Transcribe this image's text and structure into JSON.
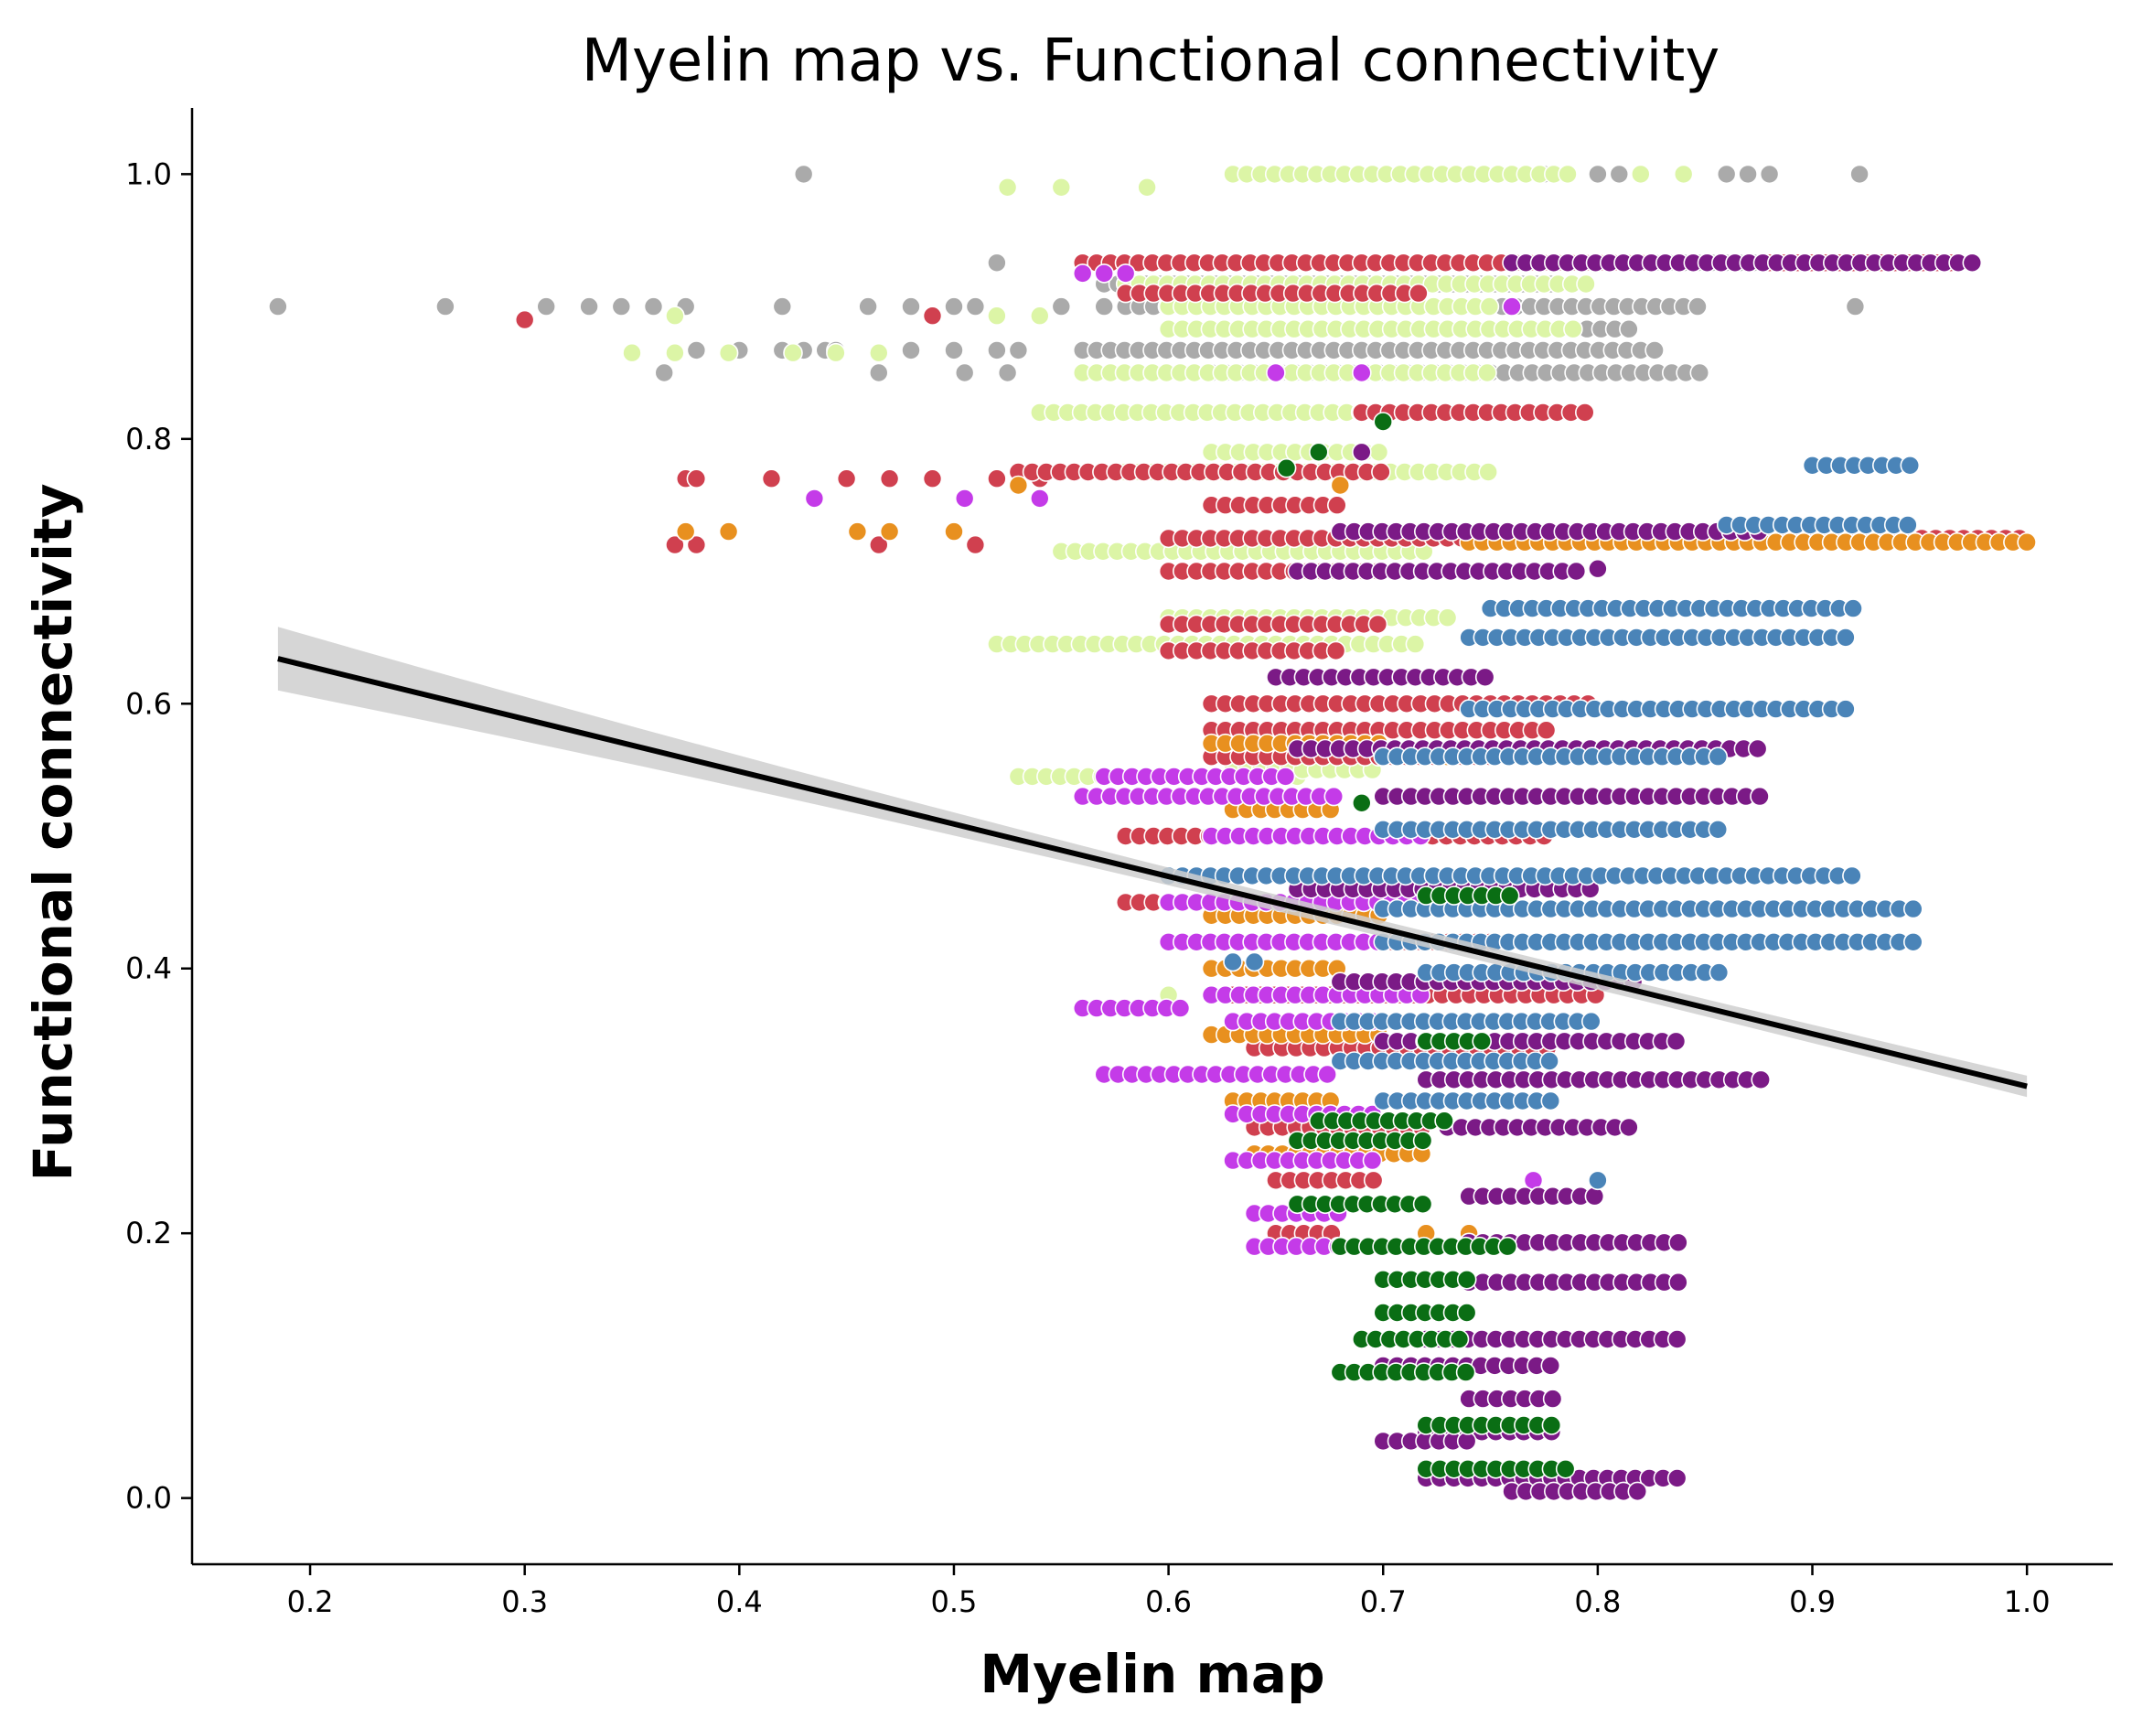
{
  "chart_data": {
    "type": "scatter",
    "title": "Myelin map vs. Functional connectivity",
    "xlabel": "Myelin map",
    "ylabel": "Functional connectivity",
    "xlim": [
      0.145,
      1.04
    ],
    "ylim": [
      -0.05,
      1.05
    ],
    "xticks": [
      "0.2",
      "0.3",
      "0.4",
      "0.5",
      "0.6",
      "0.7",
      "0.8",
      "0.9",
      "1.0"
    ],
    "yticks": [
      "0.0",
      "0.2",
      "0.4",
      "0.6",
      "0.8",
      "1.0"
    ],
    "grid": false,
    "legend": "none",
    "marker_edge_color": "#ffffff",
    "series": [
      {
        "color": "#aaaaaa",
        "clusters": [
          {
            "x": [
              0.43
            ],
            "y": 1.0
          },
          {
            "x": [
              0.185,
              0.263,
              0.31,
              0.33,
              0.345,
              0.36,
              0.375,
              0.42,
              0.46,
              0.48,
              0.5,
              0.51,
              0.55,
              0.57
            ],
            "y": 0.9
          },
          {
            "x": [
              0.38,
              0.4,
              0.42,
              0.43,
              0.44,
              0.445,
              0.48,
              0.5,
              0.52,
              0.53
            ],
            "y": 0.867
          },
          {
            "x": [
              0.365,
              0.465,
              0.505,
              0.525
            ],
            "y": 0.85
          },
          {
            "x": [
              0.47
            ],
            "y": 0.73
          },
          {
            "x": [
              0.52
            ],
            "y": 0.933
          },
          {
            "xrange": [
              0.56,
              0.84
            ],
            "y": 0.933
          },
          {
            "xrange": [
              0.57,
              0.78
            ],
            "y": 0.917
          },
          {
            "xrange": [
              0.58,
              0.85
            ],
            "y": 0.9
          },
          {
            "xrange": [
              0.6,
              0.82
            ],
            "y": 0.883
          },
          {
            "xrange": [
              0.56,
              0.83
            ],
            "y": 0.867
          },
          {
            "xrange": [
              0.62,
              0.85
            ],
            "y": 0.85
          },
          {
            "x": [
              0.775,
              0.8,
              0.81,
              0.86,
              0.87,
              0.88,
              0.922
            ],
            "y": 1.0
          },
          {
            "xrange": [
              0.84,
              0.93
            ],
            "y": 0.933
          },
          {
            "x": [
              0.92
            ],
            "y": 0.9
          }
        ]
      },
      {
        "color": "#dcf5a6",
        "clusters": [
          {
            "x": [
              0.35,
              0.37,
              0.395,
              0.425,
              0.445,
              0.465
            ],
            "y": 0.865
          },
          {
            "x": [
              0.37,
              0.52,
              0.54
            ],
            "y": 0.893
          },
          {
            "x": [
              0.525,
              0.55,
              0.59
            ],
            "y": 0.99
          },
          {
            "xrange": [
              0.63,
              0.79
            ],
            "y": 1.0
          },
          {
            "xrange": [
              0.58,
              0.8
            ],
            "y": 0.917
          },
          {
            "xrange": [
              0.6,
              0.75
            ],
            "y": 0.9
          },
          {
            "xrange": [
              0.6,
              0.79
            ],
            "y": 0.883
          },
          {
            "xrange": [
              0.56,
              0.75
            ],
            "y": 0.85
          },
          {
            "xrange": [
              0.54,
              0.7
            ],
            "y": 0.82
          },
          {
            "xrange": [
              0.62,
              0.7
            ],
            "y": 0.79
          },
          {
            "xrange": [
              0.58,
              0.75
            ],
            "y": 0.775
          },
          {
            "xrange": [
              0.55,
              0.72
            ],
            "y": 0.715
          },
          {
            "xrange": [
              0.52,
              0.72
            ],
            "y": 0.645
          },
          {
            "xrange": [
              0.6,
              0.73
            ],
            "y": 0.665
          },
          {
            "xrange": [
              0.53,
              0.66
            ],
            "y": 0.545
          },
          {
            "xrange": [
              0.63,
              0.7
            ],
            "y": 0.55
          },
          {
            "x": [
              0.58,
              0.6,
              0.62
            ],
            "y": 0.45
          },
          {
            "x": [
              0.6,
              0.62,
              0.64
            ],
            "y": 0.38
          },
          {
            "x": [
              0.82,
              0.84
            ],
            "y": 1.0
          }
        ]
      },
      {
        "color": "#d0404f",
        "clusters": [
          {
            "x": [
              0.3
            ],
            "y": 0.89
          },
          {
            "x": [
              0.375,
              0.38,
              0.415,
              0.45,
              0.47,
              0.49,
              0.52,
              0.54
            ],
            "y": 0.77
          },
          {
            "x": [
              0.37,
              0.38,
              0.465,
              0.51
            ],
            "y": 0.72
          },
          {
            "x": [
              0.49
            ],
            "y": 0.893
          },
          {
            "xrange": [
              0.56,
              0.82
            ],
            "y": 0.933
          },
          {
            "xrange": [
              0.58,
              0.72
            ],
            "y": 0.91
          },
          {
            "xrange": [
              0.69,
              0.8
            ],
            "y": 0.82
          },
          {
            "xrange": [
              0.53,
              0.7
            ],
            "y": 0.775
          },
          {
            "xrange": [
              0.62,
              0.68
            ],
            "y": 0.75
          },
          {
            "xrange": [
              0.6,
              1.0
            ],
            "y": 0.725
          },
          {
            "xrange": [
              0.6,
              0.7
            ],
            "y": 0.7
          },
          {
            "xrange": [
              0.6,
              0.7
            ],
            "y": 0.66
          },
          {
            "xrange": [
              0.6,
              0.68
            ],
            "y": 0.64
          },
          {
            "xrange": [
              0.62,
              0.8
            ],
            "y": 0.6
          },
          {
            "xrange": [
              0.62,
              0.78
            ],
            "y": 0.58
          },
          {
            "xrange": [
              0.62,
              0.75
            ],
            "y": 0.56
          },
          {
            "xrange": [
              0.58,
              0.78
            ],
            "y": 0.5
          },
          {
            "xrange": [
              0.58,
              0.7
            ],
            "y": 0.45
          },
          {
            "xrange": [
              0.62,
              0.75
            ],
            "y": 0.42
          },
          {
            "xrange": [
              0.63,
              0.8
            ],
            "y": 0.38
          },
          {
            "xrange": [
              0.64,
              0.78
            ],
            "y": 0.34
          },
          {
            "xrange": [
              0.64,
              0.72
            ],
            "y": 0.28
          },
          {
            "xrange": [
              0.65,
              0.7
            ],
            "y": 0.24
          },
          {
            "xrange": [
              0.65,
              0.68
            ],
            "y": 0.2
          },
          {
            "xrange": [
              0.88,
              0.97
            ],
            "y": 0.933
          }
        ]
      },
      {
        "color": "#e8901f",
        "clusters": [
          {
            "x": [
              0.375,
              0.395,
              0.455,
              0.47,
              0.5
            ],
            "y": 0.73
          },
          {
            "x": [
              0.53,
              0.68
            ],
            "y": 0.765
          },
          {
            "xrange": [
              0.74,
              1.0
            ],
            "y": 0.722
          },
          {
            "xrange": [
              0.62,
              0.7
            ],
            "y": 0.57
          },
          {
            "xrange": [
              0.63,
              0.68
            ],
            "y": 0.52
          },
          {
            "xrange": [
              0.62,
              0.7
            ],
            "y": 0.44
          },
          {
            "xrange": [
              0.62,
              0.68
            ],
            "y": 0.4
          },
          {
            "xrange": [
              0.62,
              0.7
            ],
            "y": 0.35
          },
          {
            "xrange": [
              0.63,
              0.68
            ],
            "y": 0.3
          },
          {
            "xrange": [
              0.64,
              0.72
            ],
            "y": 0.26
          },
          {
            "x": [
              0.72,
              0.74
            ],
            "y": 0.2
          },
          {
            "x": [
              0.73
            ],
            "y": 0.56
          }
        ]
      },
      {
        "color": "#c43be8",
        "clusters": [
          {
            "x": [
              0.435,
              0.505,
              0.54
            ],
            "y": 0.755
          },
          {
            "x": [
              0.56,
              0.57,
              0.58
            ],
            "y": 0.925
          },
          {
            "x": [
              0.65,
              0.69
            ],
            "y": 0.85
          },
          {
            "x": [
              0.76
            ],
            "y": 0.9
          },
          {
            "xrange": [
              0.57,
              0.66
            ],
            "y": 0.545
          },
          {
            "xrange": [
              0.56,
              0.68
            ],
            "y": 0.53
          },
          {
            "xrange": [
              0.62,
              0.72
            ],
            "y": 0.5
          },
          {
            "xrange": [
              0.6,
              0.74
            ],
            "y": 0.45
          },
          {
            "xrange": [
              0.6,
              0.7
            ],
            "y": 0.42
          },
          {
            "xrange": [
              0.62,
              0.72
            ],
            "y": 0.38
          },
          {
            "xrange": [
              0.56,
              0.61
            ],
            "y": 0.37
          },
          {
            "xrange": [
              0.63,
              0.7
            ],
            "y": 0.36
          },
          {
            "xrange": [
              0.57,
              0.68
            ],
            "y": 0.32
          },
          {
            "xrange": [
              0.63,
              0.7
            ],
            "y": 0.29
          },
          {
            "xrange": [
              0.63,
              0.7
            ],
            "y": 0.255
          },
          {
            "xrange": [
              0.64,
              0.68
            ],
            "y": 0.215
          },
          {
            "xrange": [
              0.64,
              0.68
            ],
            "y": 0.19
          },
          {
            "x": [
              0.77
            ],
            "y": 0.24
          }
        ]
      },
      {
        "color": "#7b1a86",
        "clusters": [
          {
            "x": [
              0.69
            ],
            "y": 0.79
          },
          {
            "xrange": [
              0.76,
              0.98
            ],
            "y": 0.933
          },
          {
            "xrange": [
              0.68,
              0.88
            ],
            "y": 0.73
          },
          {
            "xrange": [
              0.66,
              0.79
            ],
            "y": 0.7
          },
          {
            "xrange": [
              0.65,
              0.75
            ],
            "y": 0.62
          },
          {
            "xrange": [
              0.66,
              0.88
            ],
            "y": 0.566
          },
          {
            "xrange": [
              0.7,
              0.88
            ],
            "y": 0.53
          },
          {
            "xrange": [
              0.66,
              0.8
            ],
            "y": 0.46
          },
          {
            "xrange": [
              0.68,
              0.82
            ],
            "y": 0.39
          },
          {
            "xrange": [
              0.7,
              0.84
            ],
            "y": 0.345
          },
          {
            "xrange": [
              0.72,
              0.88
            ],
            "y": 0.316
          },
          {
            "xrange": [
              0.73,
              0.82
            ],
            "y": 0.28
          },
          {
            "xrange": [
              0.74,
              0.8
            ],
            "y": 0.228
          },
          {
            "xrange": [
              0.74,
              0.84
            ],
            "y": 0.193
          },
          {
            "xrange": [
              0.74,
              0.84
            ],
            "y": 0.163
          },
          {
            "xrange": [
              0.72,
              0.84
            ],
            "y": 0.12
          },
          {
            "xrange": [
              0.7,
              0.78
            ],
            "y": 0.1
          },
          {
            "xrange": [
              0.74,
              0.78
            ],
            "y": 0.075
          },
          {
            "xrange": [
              0.72,
              0.78
            ],
            "y": 0.05
          },
          {
            "xrange": [
              0.7,
              0.74
            ],
            "y": 0.043
          },
          {
            "xrange": [
              0.72,
              0.84
            ],
            "y": 0.015
          },
          {
            "xrange": [
              0.76,
              0.82
            ],
            "y": 0.005
          },
          {
            "x": [
              0.8
            ],
            "y": 0.702
          }
        ]
      },
      {
        "color": "#4a84b8",
        "clusters": [
          {
            "xrange": [
              0.9,
              0.95
            ],
            "y": 0.78
          },
          {
            "xrange": [
              0.86,
              0.95
            ],
            "y": 0.735
          },
          {
            "xrange": [
              0.75,
              0.92
            ],
            "y": 0.672
          },
          {
            "xrange": [
              0.74,
              0.92
            ],
            "y": 0.65
          },
          {
            "xrange": [
              0.74,
              0.92
            ],
            "y": 0.596
          },
          {
            "xrange": [
              0.7,
              0.86
            ],
            "y": 0.56
          },
          {
            "xrange": [
              0.7,
              0.86
            ],
            "y": 0.505
          },
          {
            "xrange": [
              0.6,
              0.92
            ],
            "y": 0.47
          },
          {
            "xrange": [
              0.7,
              0.95
            ],
            "y": 0.445
          },
          {
            "xrange": [
              0.7,
              0.95
            ],
            "y": 0.42
          },
          {
            "xrange": [
              0.72,
              0.86
            ],
            "y": 0.397
          },
          {
            "xrange": [
              0.68,
              0.8
            ],
            "y": 0.36
          },
          {
            "xrange": [
              0.68,
              0.78
            ],
            "y": 0.33
          },
          {
            "xrange": [
              0.7,
              0.78
            ],
            "y": 0.3
          },
          {
            "x": [
              0.63,
              0.64
            ],
            "y": 0.405
          },
          {
            "x": [
              0.8
            ],
            "y": 0.24
          }
        ]
      },
      {
        "color": "#0a6e14",
        "clusters": [
          {
            "x": [
              0.655
            ],
            "y": 0.778
          },
          {
            "x": [
              0.7
            ],
            "y": 0.813
          },
          {
            "x": [
              0.67
            ],
            "y": 0.79
          },
          {
            "x": [
              0.69
            ],
            "y": 0.525
          },
          {
            "xrange": [
              0.72,
              0.76
            ],
            "y": 0.455
          },
          {
            "xrange": [
              0.72,
              0.75
            ],
            "y": 0.345
          },
          {
            "xrange": [
              0.67,
              0.73
            ],
            "y": 0.285
          },
          {
            "xrange": [
              0.66,
              0.72
            ],
            "y": 0.27
          },
          {
            "xrange": [
              0.66,
              0.72
            ],
            "y": 0.222
          },
          {
            "xrange": [
              0.68,
              0.76
            ],
            "y": 0.19
          },
          {
            "xrange": [
              0.7,
              0.74
            ],
            "y": 0.165
          },
          {
            "xrange": [
              0.7,
              0.74
            ],
            "y": 0.14
          },
          {
            "xrange": [
              0.69,
              0.74
            ],
            "y": 0.12
          },
          {
            "xrange": [
              0.68,
              0.74
            ],
            "y": 0.095
          },
          {
            "xrange": [
              0.72,
              0.78
            ],
            "y": 0.055
          },
          {
            "xrange": [
              0.72,
              0.79
            ],
            "y": 0.022
          }
        ]
      }
    ],
    "regression": {
      "x": [
        0.185,
        1.0
      ],
      "y": [
        0.634,
        0.311
      ],
      "ci_halfwidth": [
        0.024,
        0.012
      ],
      "line_color": "#000000",
      "band_color": "#cfcfcf"
    }
  }
}
